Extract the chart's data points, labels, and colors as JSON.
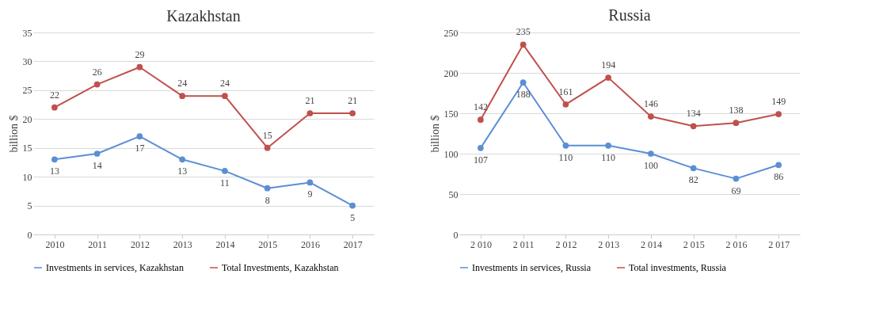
{
  "chart_data": [
    {
      "type": "line",
      "title": "Kazakhstan",
      "ylabel": "billion $",
      "categories": [
        "2010",
        "2011",
        "2012",
        "2013",
        "2014",
        "2015",
        "2016",
        "2017"
      ],
      "series": [
        {
          "name": "Investments in services, Kazakhstan",
          "color": "#5b8fd4",
          "values": [
            13,
            14,
            17,
            13,
            11,
            8,
            9,
            5
          ]
        },
        {
          "name": "Total Investments, Kazakhstan",
          "color": "#c0504d",
          "values": [
            22,
            26,
            29,
            24,
            24,
            15,
            21,
            21
          ]
        }
      ],
      "ylim": [
        0,
        35
      ],
      "yticks": [
        0,
        5,
        10,
        15,
        20,
        25,
        30,
        35
      ],
      "grid": "y",
      "legend": "bottom",
      "marker": "circle",
      "line_style": "solid",
      "data_labels": true
    },
    {
      "type": "line",
      "title": "Russia",
      "ylabel": "billion $",
      "categories": [
        "2 010",
        "2 011",
        "2 012",
        "2 013",
        "2 014",
        "2 015",
        "2 016",
        "2 017"
      ],
      "series": [
        {
          "name": "Investments in services, Russia",
          "color": "#5b8fd4",
          "values": [
            107,
            188,
            110,
            110,
            100,
            82,
            69,
            86
          ]
        },
        {
          "name": "Total investments, Russia",
          "color": "#c0504d",
          "values": [
            142,
            235,
            161,
            194,
            146,
            134,
            138,
            149
          ]
        }
      ],
      "ylim": [
        0,
        250
      ],
      "yticks": [
        0,
        50,
        100,
        150,
        200,
        250
      ],
      "grid": "y",
      "legend": "bottom",
      "marker": "circle",
      "line_style": "solid",
      "data_labels": true
    }
  ]
}
